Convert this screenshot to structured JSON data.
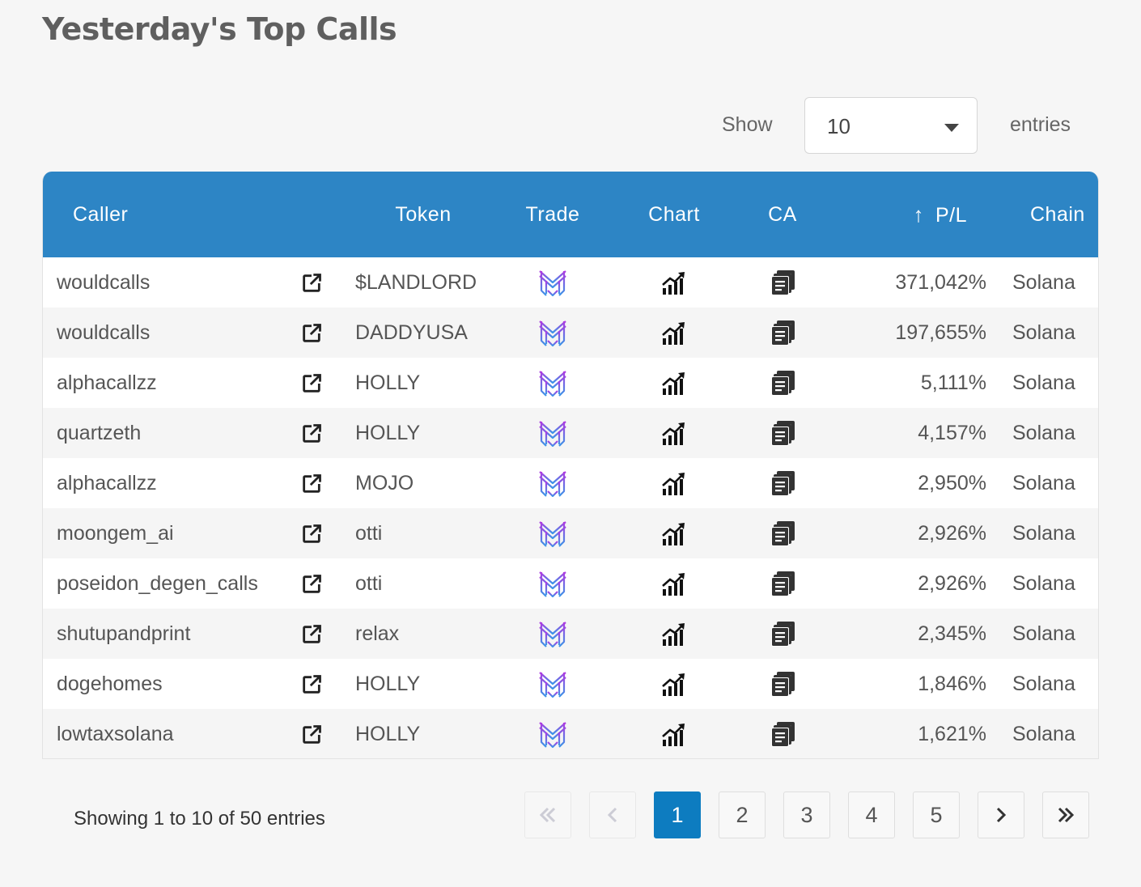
{
  "page": {
    "title": "Yesterday's Top Calls"
  },
  "length_control": {
    "show_label": "Show",
    "selected": "10",
    "entries_label": "entries"
  },
  "table": {
    "headers": {
      "caller": "Caller",
      "token": "Token",
      "trade": "Trade",
      "chart": "Chart",
      "ca": "CA",
      "sort_icon": "↑",
      "pl": "P/L",
      "chain": "Chain"
    },
    "rows": [
      {
        "caller": "wouldcalls",
        "token": "$LANDLORD",
        "pl": "371,042%",
        "chain": "Solana"
      },
      {
        "caller": "wouldcalls",
        "token": "DADDYUSA",
        "pl": "197,655%",
        "chain": "Solana"
      },
      {
        "caller": "alphacallzz",
        "token": "HOLLY",
        "pl": "5,111%",
        "chain": "Solana"
      },
      {
        "caller": "quartzeth",
        "token": "HOLLY",
        "pl": "4,157%",
        "chain": "Solana"
      },
      {
        "caller": "alphacallzz",
        "token": "MOJO",
        "pl": "2,950%",
        "chain": "Solana"
      },
      {
        "caller": "moongem_ai",
        "token": "otti",
        "pl": "2,926%",
        "chain": "Solana"
      },
      {
        "caller": "poseidon_degen_calls",
        "token": "otti",
        "pl": "2,926%",
        "chain": "Solana"
      },
      {
        "caller": "shutupandprint",
        "token": "relax",
        "pl": "2,345%",
        "chain": "Solana"
      },
      {
        "caller": "dogehomes",
        "token": "HOLLY",
        "pl": "1,846%",
        "chain": "Solana"
      },
      {
        "caller": "lowtaxsolana",
        "token": "HOLLY",
        "pl": "1,621%",
        "chain": "Solana"
      }
    ],
    "icons": {
      "link": "external-link-icon",
      "trade": "trade-logo-icon",
      "chart": "chart-icon",
      "ca": "copy-icon"
    }
  },
  "info": "Showing 1 to 10 of 50 entries",
  "pagination": {
    "pages": [
      "1",
      "2",
      "3",
      "4",
      "5"
    ],
    "current": "1",
    "first_icon": "double-chevron-left-icon",
    "prev_icon": "chevron-left-icon",
    "next_icon": "chevron-right-icon",
    "last_icon": "double-chevron-right-icon"
  },
  "colors": {
    "header_bg": "#2d85c5",
    "active_page": "#0d7cc0",
    "trade_logo_top": "#a13be0",
    "trade_logo_bottom": "#3a8fe8"
  }
}
